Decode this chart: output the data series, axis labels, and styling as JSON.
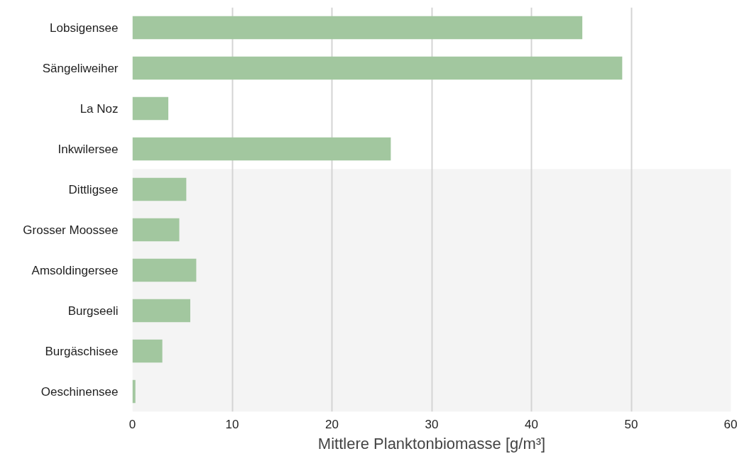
{
  "chart_data": {
    "type": "bar",
    "orientation": "horizontal",
    "xlabel": "Mittlere Planktonbiomasse [g/m³]",
    "categories": [
      "Lobsigensee",
      "Sängeliweiher",
      "La Noz",
      "Inkwilersee",
      "Dittligsee",
      "Grosser Moossee",
      "Amsoldingersee",
      "Burgseeli",
      "Burgäschisee",
      "Oeschinensee"
    ],
    "values": [
      45.1,
      49.1,
      3.6,
      25.9,
      5.4,
      4.7,
      6.4,
      5.8,
      3.0,
      0.3
    ],
    "color": "#a2c79f",
    "xlim": [
      0,
      60
    ],
    "xticks": [
      0,
      10,
      20,
      30,
      40,
      50,
      60
    ],
    "grid": "x",
    "bands": [
      {
        "axis": "y",
        "from": "Dittligsee",
        "to": "Oeschinensee",
        "color": "#f4f4f4"
      }
    ]
  }
}
